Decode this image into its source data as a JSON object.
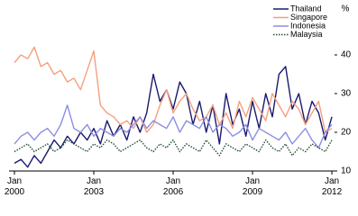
{
  "chart_data": {
    "type": "line",
    "y_label": "%",
    "x": [
      2000,
      2000.25,
      2000.5,
      2000.75,
      2001,
      2001.25,
      2001.5,
      2001.75,
      2002,
      2002.25,
      2002.5,
      2002.75,
      2003,
      2003.25,
      2003.5,
      2003.75,
      2004,
      2004.25,
      2004.5,
      2004.75,
      2005,
      2005.25,
      2005.5,
      2005.75,
      2006,
      2006.25,
      2006.5,
      2006.75,
      2007,
      2007.25,
      2007.5,
      2007.75,
      2008,
      2008.25,
      2008.5,
      2008.75,
      2009,
      2009.25,
      2009.5,
      2009.75,
      2010,
      2010.25,
      2010.5,
      2010.75,
      2011,
      2011.25,
      2011.5,
      2011.75,
      2012
    ],
    "series": [
      {
        "name": "Thailand",
        "color": "#1a1a6e",
        "line_style": "solid",
        "values": [
          12,
          13,
          11,
          14,
          12,
          15,
          18,
          16,
          19,
          17,
          20,
          18,
          21,
          17,
          23,
          19,
          22,
          18,
          24,
          20,
          25,
          35,
          28,
          31,
          26,
          33,
          30,
          22,
          28,
          20,
          27,
          17,
          30,
          22,
          26,
          19,
          28,
          21,
          30,
          24,
          35,
          37,
          26,
          30,
          22,
          28,
          25,
          18,
          24
        ]
      },
      {
        "name": "Singapore",
        "color": "#f4a07c",
        "line_style": "solid",
        "values": [
          38,
          40,
          39,
          42,
          37,
          38,
          35,
          36,
          33,
          34,
          31,
          36,
          41,
          27,
          25,
          24,
          22,
          23,
          21,
          24,
          20,
          22,
          27,
          31,
          25,
          28,
          30,
          26,
          23,
          24,
          27,
          22,
          25,
          21,
          28,
          24,
          29,
          26,
          23,
          30,
          27,
          24,
          28,
          26,
          22,
          25,
          28,
          20,
          21
        ]
      },
      {
        "name": "Indonesia",
        "color": "#8b8fe0",
        "line_style": "solid",
        "values": [
          17,
          19,
          20,
          18,
          20,
          21,
          19,
          22,
          27,
          21,
          20,
          22,
          19,
          21,
          20,
          19,
          21,
          20,
          22,
          24,
          21,
          23,
          22,
          21,
          24,
          20,
          23,
          22,
          21,
          24,
          20,
          22,
          21,
          19,
          20,
          22,
          18,
          21,
          20,
          19,
          18,
          20,
          17,
          19,
          21,
          18,
          16,
          20,
          22
        ]
      },
      {
        "name": "Malaysia",
        "color": "#1f4f2f",
        "line_style": "dotted",
        "values": [
          15,
          16,
          17,
          15,
          16,
          17,
          15,
          16,
          18,
          17,
          16,
          15,
          17,
          16,
          18,
          17,
          15,
          16,
          17,
          18,
          16,
          15,
          17,
          16,
          18,
          15,
          17,
          16,
          15,
          18,
          16,
          14,
          17,
          16,
          15,
          17,
          16,
          15,
          18,
          16,
          15,
          17,
          14,
          16,
          15,
          17,
          16,
          15,
          18
        ]
      }
    ],
    "xlim": [
      2000,
      2012.2
    ],
    "xticks": [
      {
        "value": 2000,
        "label": "Jan 2000"
      },
      {
        "value": 2003,
        "label": "Jan 2003"
      },
      {
        "value": 2006,
        "label": "Jan 2006"
      },
      {
        "value": 2009,
        "label": "Jan 2009"
      },
      {
        "value": 2012,
        "label": "Jan 2012"
      }
    ],
    "ylim": [
      10,
      50
    ],
    "yticks": [
      10,
      20,
      30,
      40
    ],
    "legend": "top-right"
  }
}
